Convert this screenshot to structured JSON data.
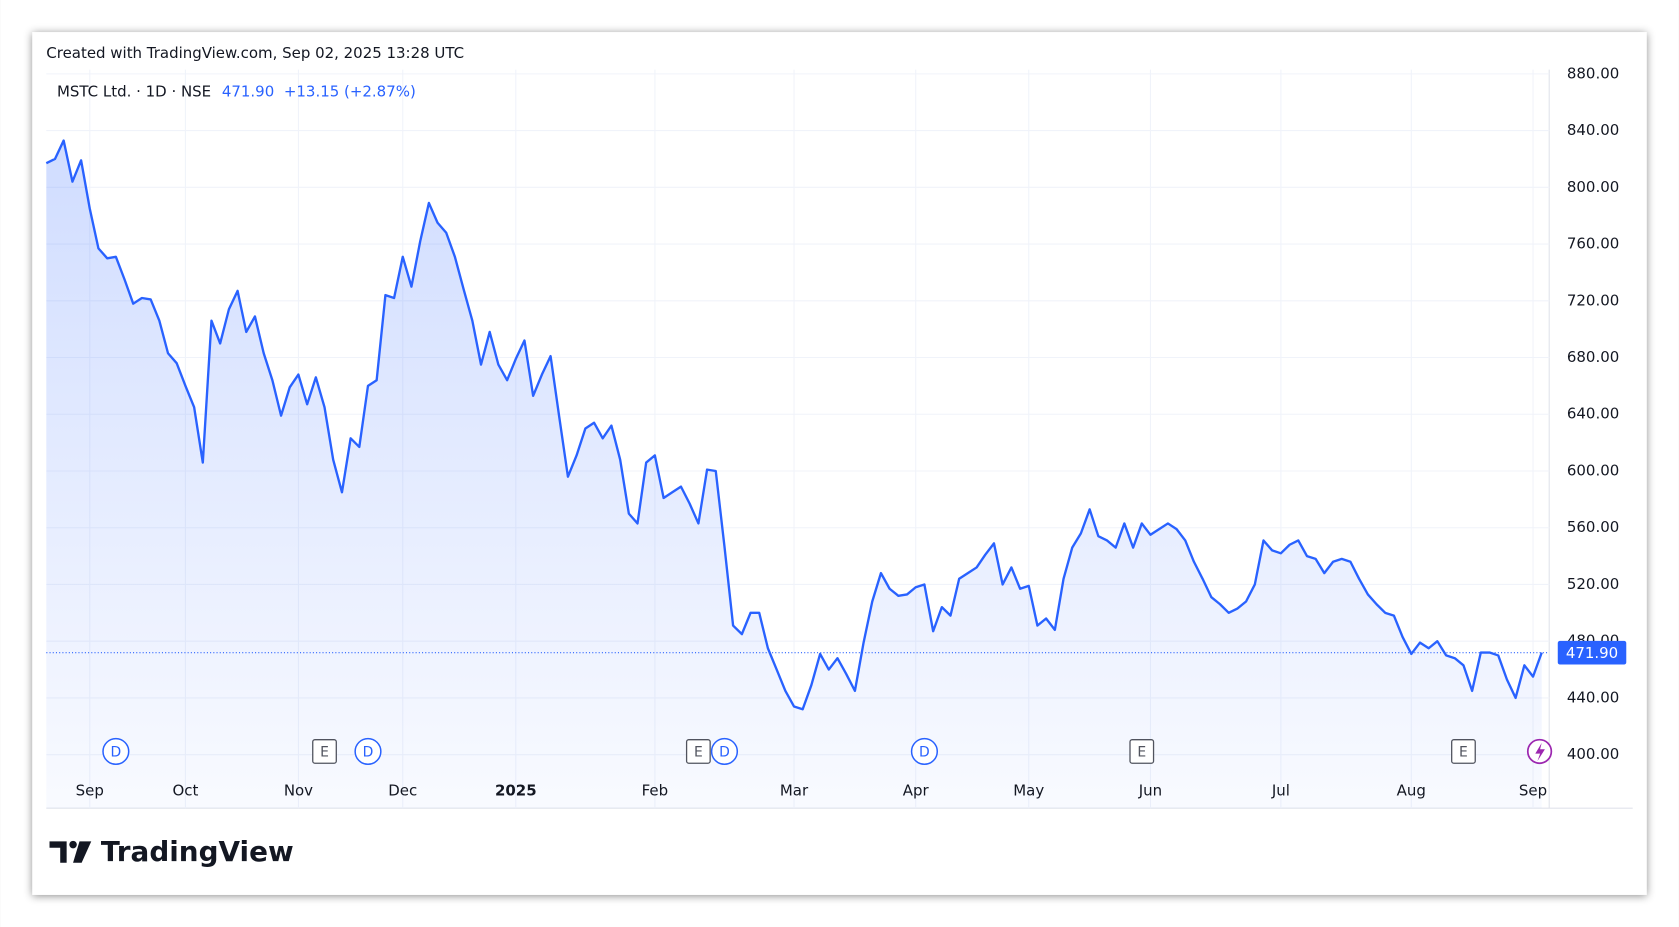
{
  "header": {
    "text": "Created with TradingView.com, Sep 02, 2025 13:28 UTC"
  },
  "footer": {
    "brand": "TradingView"
  },
  "chart_data": {
    "type": "line",
    "symbol": "MSTC Ltd. · 1D · NSE",
    "last": {
      "value": 471.9,
      "label": "471.90"
    },
    "change": "+13.15 (+2.87%)",
    "color": "#2962ff",
    "grid": true,
    "ylim": [
      400,
      880
    ],
    "yticks": [
      {
        "value": 400,
        "label": "400.00"
      },
      {
        "value": 440,
        "label": "440.00"
      },
      {
        "value": 480,
        "label": "480.00"
      },
      {
        "value": 520,
        "label": "520.00"
      },
      {
        "value": 560,
        "label": "560.00"
      },
      {
        "value": 600,
        "label": "600.00"
      },
      {
        "value": 640,
        "label": "640.00"
      },
      {
        "value": 680,
        "label": "680.00"
      },
      {
        "value": 720,
        "label": "720.00"
      },
      {
        "value": 760,
        "label": "760.00"
      },
      {
        "value": 800,
        "label": "800.00"
      },
      {
        "value": 840,
        "label": "840.00"
      },
      {
        "value": 880,
        "label": "880.00"
      }
    ],
    "categories": [
      null,
      null,
      null,
      null,
      null,
      "Sep",
      null,
      null,
      null,
      null,
      null,
      null,
      null,
      null,
      null,
      null,
      "Oct",
      null,
      null,
      null,
      null,
      null,
      null,
      null,
      null,
      null,
      null,
      null,
      null,
      "Nov",
      null,
      null,
      null,
      null,
      null,
      null,
      null,
      null,
      null,
      null,
      null,
      "Dec",
      null,
      null,
      null,
      null,
      null,
      null,
      null,
      null,
      null,
      null,
      null,
      null,
      "2025",
      null,
      null,
      null,
      null,
      null,
      null,
      null,
      null,
      null,
      null,
      null,
      null,
      null,
      null,
      null,
      "Feb",
      null,
      null,
      null,
      null,
      null,
      null,
      null,
      null,
      null,
      null,
      null,
      null,
      null,
      null,
      null,
      "Mar",
      null,
      null,
      null,
      null,
      null,
      null,
      null,
      null,
      null,
      null,
      null,
      null,
      null,
      "Apr",
      null,
      null,
      null,
      null,
      null,
      null,
      null,
      null,
      null,
      null,
      null,
      null,
      "May",
      null,
      null,
      null,
      null,
      null,
      null,
      null,
      null,
      null,
      null,
      null,
      null,
      null,
      "Jun",
      null,
      null,
      null,
      null,
      null,
      null,
      null,
      null,
      null,
      null,
      null,
      null,
      null,
      null,
      "Jul",
      null,
      null,
      null,
      null,
      null,
      null,
      null,
      null,
      null,
      null,
      null,
      null,
      null,
      null,
      "Aug",
      null,
      null,
      null,
      null,
      null,
      null,
      null,
      null,
      null,
      null,
      null,
      null,
      null,
      "Sep",
      null
    ],
    "events": [
      null,
      null,
      null,
      null,
      null,
      null,
      null,
      null,
      "D",
      null,
      null,
      null,
      null,
      null,
      null,
      null,
      null,
      null,
      null,
      null,
      null,
      null,
      null,
      null,
      null,
      null,
      null,
      null,
      null,
      null,
      null,
      null,
      "E",
      null,
      null,
      null,
      null,
      "D",
      null,
      null,
      null,
      null,
      null,
      null,
      null,
      null,
      null,
      null,
      null,
      null,
      null,
      null,
      null,
      null,
      null,
      null,
      null,
      null,
      null,
      null,
      null,
      null,
      null,
      null,
      null,
      null,
      null,
      null,
      null,
      null,
      null,
      null,
      null,
      null,
      null,
      "E",
      null,
      null,
      "D",
      null,
      null,
      null,
      null,
      null,
      null,
      null,
      null,
      null,
      null,
      null,
      null,
      null,
      null,
      null,
      null,
      null,
      null,
      null,
      null,
      null,
      null,
      "D",
      null,
      null,
      null,
      null,
      null,
      null,
      null,
      null,
      null,
      null,
      null,
      null,
      null,
      null,
      null,
      null,
      null,
      null,
      null,
      null,
      null,
      null,
      null,
      null,
      "E",
      null,
      null,
      null,
      null,
      null,
      null,
      null,
      null,
      null,
      null,
      null,
      null,
      null,
      null,
      null,
      null,
      null,
      null,
      null,
      null,
      null,
      null,
      null,
      null,
      null,
      null,
      null,
      null,
      null,
      null,
      null,
      null,
      null,
      null,
      null,
      null,
      "E",
      null,
      null,
      null,
      null,
      null,
      null,
      null,
      null,
      null
    ],
    "values": [
      817,
      820,
      833,
      804,
      819,
      785,
      757,
      750,
      751,
      735,
      718,
      722,
      721,
      706,
      683,
      676,
      660,
      645,
      606,
      706,
      690,
      714,
      727,
      698,
      709,
      683,
      664,
      639,
      659,
      668,
      647,
      666,
      645,
      608,
      585,
      623,
      617,
      660,
      664,
      724,
      722,
      751,
      730,
      762,
      789,
      775,
      768,
      751,
      728,
      706,
      675,
      698,
      675,
      664,
      679,
      692,
      653,
      668,
      681,
      638,
      596,
      611,
      630,
      634,
      623,
      632,
      608,
      570,
      563,
      606,
      611,
      581,
      585,
      589,
      577,
      563,
      601,
      600,
      547,
      491,
      485,
      500,
      500,
      475,
      460,
      445,
      434,
      432,
      449,
      471,
      460,
      468,
      457,
      445,
      479,
      508,
      528,
      517,
      512,
      513,
      518,
      520,
      487,
      504,
      498,
      524,
      528,
      532,
      541,
      549,
      520,
      532,
      517,
      519,
      491,
      496,
      488,
      524,
      546,
      556,
      573,
      554,
      551,
      546,
      563,
      546,
      563,
      555,
      559,
      563,
      559,
      551,
      536,
      524,
      511,
      506,
      500,
      503,
      508,
      520,
      551,
      544,
      542,
      548,
      551,
      540,
      538,
      528,
      536,
      538,
      536,
      524,
      513,
      506,
      500,
      498,
      483,
      471,
      479,
      475,
      480,
      470,
      468,
      463,
      445,
      472,
      472,
      470,
      453,
      440,
      463,
      455,
      471.9
    ]
  }
}
